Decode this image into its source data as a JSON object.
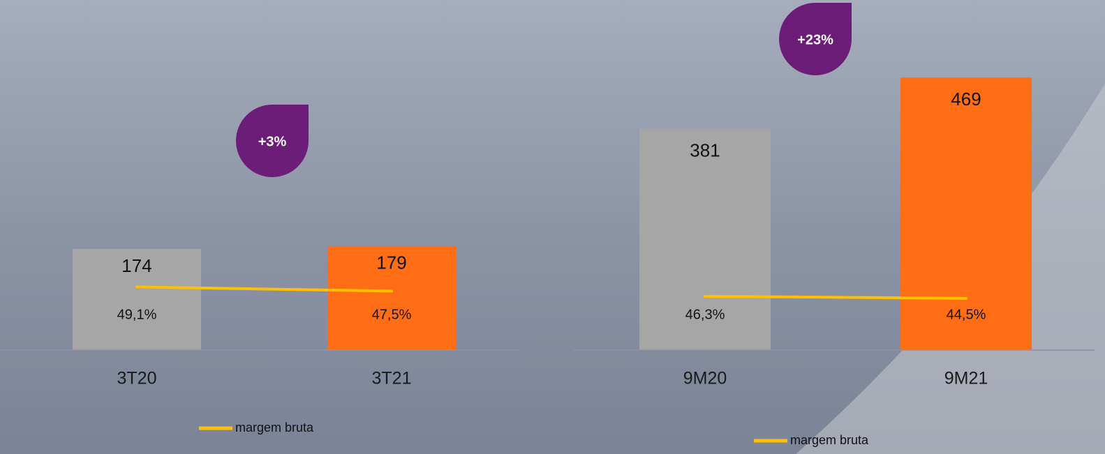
{
  "chart_data": [
    {
      "type": "bar",
      "annotation": "+3%",
      "categories": [
        "3T20",
        "3T21"
      ],
      "ylim": [
        0,
        600
      ],
      "y2lim": [
        25,
        158
      ],
      "series": [
        {
          "type": "bar",
          "colors": [
            "#a6a6a6",
            "#ff6d15"
          ],
          "values": [
            174,
            179
          ]
        },
        {
          "type": "line",
          "axis": "y2",
          "name": "margem bruta",
          "color": "#ffc000",
          "values": [
            49.1,
            47.5
          ],
          "value_labels": [
            "49,1%",
            "47,5%"
          ]
        }
      ]
    },
    {
      "type": "bar",
      "annotation": "+23%",
      "categories": [
        "9M20",
        "9M21"
      ],
      "ylim": [
        0,
        600
      ],
      "y2lim": [
        0,
        300
      ],
      "series": [
        {
          "type": "bar",
          "colors": [
            "#a6a6a6",
            "#ff6d15"
          ],
          "values": [
            381,
            469
          ]
        },
        {
          "type": "line",
          "axis": "y2",
          "name": "margem bruta",
          "color": "#ffc000",
          "values": [
            46.3,
            44.5
          ],
          "value_labels": [
            "46,3%",
            "44,5%"
          ]
        }
      ]
    }
  ]
}
